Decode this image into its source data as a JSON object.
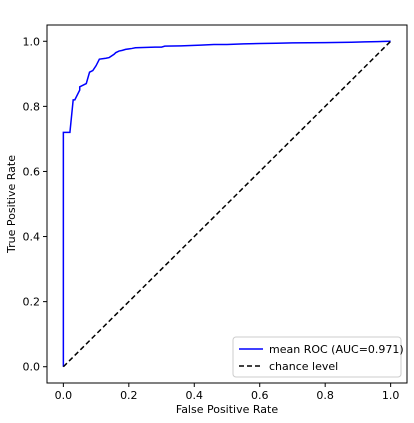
{
  "chart_data": {
    "type": "line",
    "title": "",
    "xlabel": "False Positive Rate",
    "ylabel": "True Positive Rate",
    "xlim": [
      -0.05,
      1.05
    ],
    "ylim": [
      -0.05,
      1.05
    ],
    "xticks": [
      "0.0",
      "0.2",
      "0.4",
      "0.6",
      "0.8",
      "1.0"
    ],
    "yticks": [
      "0.0",
      "0.2",
      "0.4",
      "0.6",
      "0.8",
      "1.0"
    ],
    "grid": false,
    "legend_position": "lower-right",
    "series": [
      {
        "name": "mean ROC (AUC=0.971)",
        "color": "#0000ff",
        "style": "solid",
        "x": [
          0.0,
          0.0,
          0.0,
          0.02,
          0.03,
          0.035,
          0.05,
          0.05,
          0.07,
          0.08,
          0.09,
          0.1,
          0.11,
          0.13,
          0.14,
          0.155,
          0.16,
          0.17,
          0.18,
          0.19,
          0.21,
          0.22,
          0.28,
          0.3,
          0.31,
          0.36,
          0.42,
          0.46,
          0.5,
          0.55,
          0.6,
          0.65,
          0.7,
          0.8,
          0.88,
          0.92,
          0.96,
          1.0
        ],
        "y": [
          0.0,
          0.71,
          0.72,
          0.72,
          0.82,
          0.82,
          0.85,
          0.86,
          0.87,
          0.905,
          0.91,
          0.925,
          0.945,
          0.948,
          0.95,
          0.96,
          0.965,
          0.97,
          0.972,
          0.975,
          0.978,
          0.98,
          0.982,
          0.982,
          0.985,
          0.986,
          0.988,
          0.99,
          0.99,
          0.992,
          0.993,
          0.994,
          0.995,
          0.996,
          0.997,
          0.998,
          0.999,
          1.0
        ]
      },
      {
        "name": "chance level",
        "color": "#000000",
        "style": "dashed",
        "x": [
          0.0,
          1.0
        ],
        "y": [
          0.0,
          1.0
        ]
      }
    ]
  }
}
